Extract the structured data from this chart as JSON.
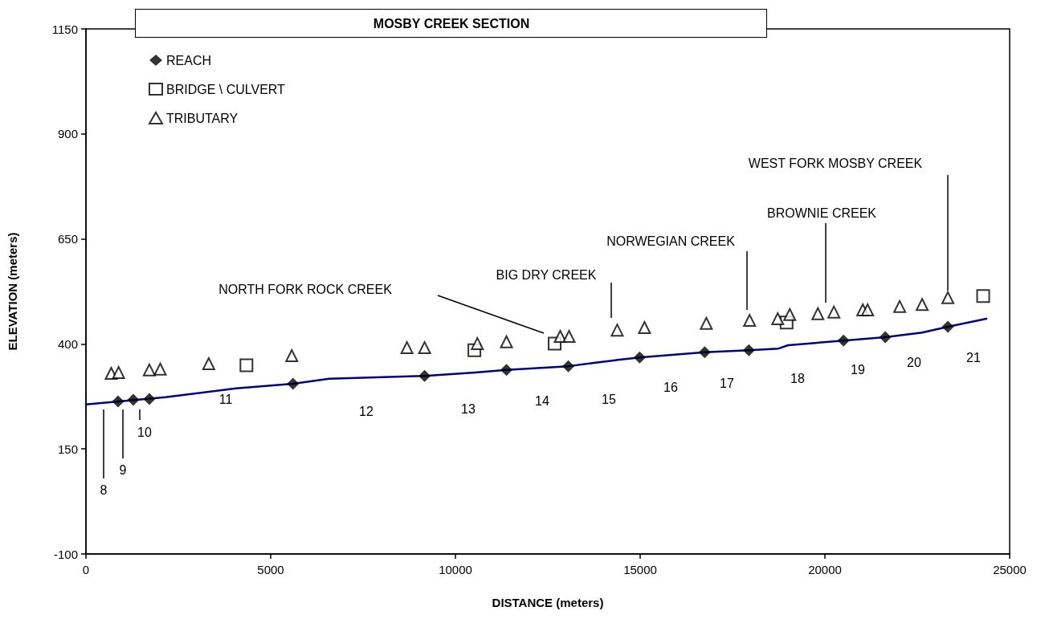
{
  "chart_data": {
    "type": "scatter",
    "title": "MOSBY CREEK SECTION",
    "xlabel": "DISTANCE (meters)",
    "ylabel": "ELEVATION (meters)",
    "xlim": [
      0,
      25000
    ],
    "xticks": [
      0,
      5000,
      10000,
      15000,
      20000,
      25000
    ],
    "ylim": [
      -100,
      1150
    ],
    "yticks": [
      -100,
      150,
      400,
      650,
      900,
      1150
    ],
    "grid": false,
    "legend": "top left",
    "series": [
      {
        "type": "line",
        "color": "#000080",
        "marker": "none",
        "line_style": "solid",
        "x": [
          0,
          2150,
          4062,
          5604,
          6581,
          9166,
          10534,
          11381,
          13054,
          13749,
          14400,
          14987,
          16746,
          17941,
          18744,
          19005,
          20504,
          21633,
          22632,
          23328,
          24370
        ],
        "values": [
          256,
          273,
          294,
          305,
          317,
          324,
          332,
          338,
          347,
          355,
          362,
          368,
          380,
          385,
          389,
          397,
          408,
          416,
          427,
          441,
          460
        ]
      },
      {
        "name": "REACH",
        "color": "#000000",
        "marker": "diamond",
        "x": [
          869,
          1281,
          1716,
          5604,
          9166,
          11381,
          13054,
          14987,
          16746,
          17941,
          20504,
          21633,
          23328
        ],
        "values": [
          263,
          267,
          269,
          305,
          324,
          338,
          347,
          368,
          380,
          385,
          408,
          416,
          441
        ]
      },
      {
        "name": "BRIDGE \\ CULVERT",
        "color": "#000000",
        "marker": "square",
        "x": [
          4344,
          10513,
          12685,
          18962,
          24283
        ],
        "values": [
          349,
          385,
          401,
          451,
          514
        ]
      },
      {
        "name": "TRIBUTARY",
        "color": "#000000",
        "marker": "triangle",
        "x": [
          684,
          884,
          1716,
          2011,
          3323,
          5571,
          8688,
          9166,
          10593,
          11381,
          12837,
          13075,
          14379,
          15117,
          16790,
          17962,
          18723,
          19049,
          19809,
          20243,
          21025,
          21155,
          22024,
          22632,
          23328
        ],
        "values": [
          330,
          332,
          338,
          340,
          353,
          372,
          391,
          391,
          401,
          405,
          418,
          418,
          433,
          439,
          449,
          456,
          460,
          470,
          472,
          476,
          481,
          481,
          489,
          494,
          510
        ]
      }
    ],
    "annotations": [
      "8",
      "9",
      "10",
      "11",
      "12",
      "13",
      "14",
      "15",
      "16",
      "17",
      "18",
      "19",
      "20",
      "21",
      "NORTH FORK ROCK CREEK",
      "BIG DRY CREEK",
      "NORWEGIAN CREEK",
      "BROWNIE CREEK",
      "WEST FORK MOSBY CREEK"
    ]
  }
}
